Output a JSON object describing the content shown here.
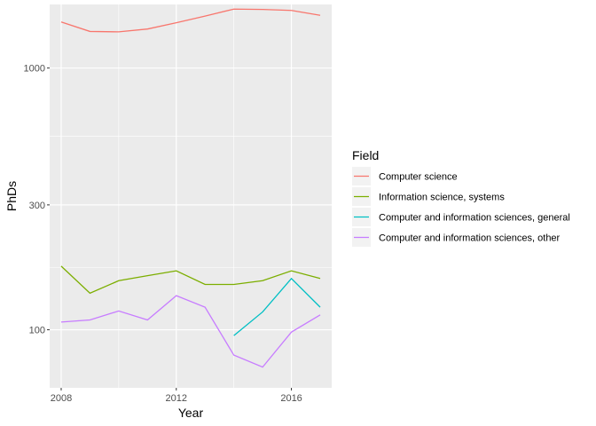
{
  "chart_data": {
    "type": "line",
    "title": "",
    "xlabel": "Year",
    "ylabel": "PhDs",
    "y_scale": "log10",
    "xlim": [
      2007.6,
      2017.4
    ],
    "ylim": [
      60,
      1750
    ],
    "x_ticks": [
      2008,
      2012,
      2016
    ],
    "x_tick_labels": [
      "2008",
      "2012",
      "2016"
    ],
    "y_ticks": [
      100,
      300,
      1000
    ],
    "y_tick_labels": [
      "100",
      "300",
      "1000"
    ],
    "y_minor_ticks": [
      173,
      548
    ],
    "x_minor_ticks": [
      2010,
      2014
    ],
    "grid": true,
    "legend_title": "Field",
    "legend_position": "right",
    "series": [
      {
        "name": "Computer science",
        "color": "#F8766D",
        "x": [
          2008,
          2009,
          2010,
          2011,
          2012,
          2013,
          2014,
          2015,
          2016,
          2017
        ],
        "values": [
          1500,
          1380,
          1375,
          1410,
          1490,
          1580,
          1680,
          1675,
          1660,
          1590
        ]
      },
      {
        "name": "Information science, systems",
        "color": "#7CAE00",
        "x": [
          2008,
          2009,
          2010,
          2011,
          2012,
          2013,
          2014,
          2015,
          2016,
          2017
        ],
        "values": [
          175,
          138,
          154,
          161,
          168,
          149,
          149,
          154,
          168,
          157
        ]
      },
      {
        "name": "Computer and information sciences, general",
        "color": "#00BFC4",
        "x": [
          2014,
          2015,
          2016,
          2017
        ],
        "values": [
          95,
          117,
          157,
          122
        ]
      },
      {
        "name": "Computer and information sciences, other",
        "color": "#C77CFF",
        "x": [
          2008,
          2009,
          2010,
          2011,
          2012,
          2013,
          2014,
          2015,
          2016,
          2017
        ],
        "values": [
          107,
          109,
          118,
          109,
          135,
          122,
          80,
          72,
          98,
          114
        ]
      }
    ]
  }
}
